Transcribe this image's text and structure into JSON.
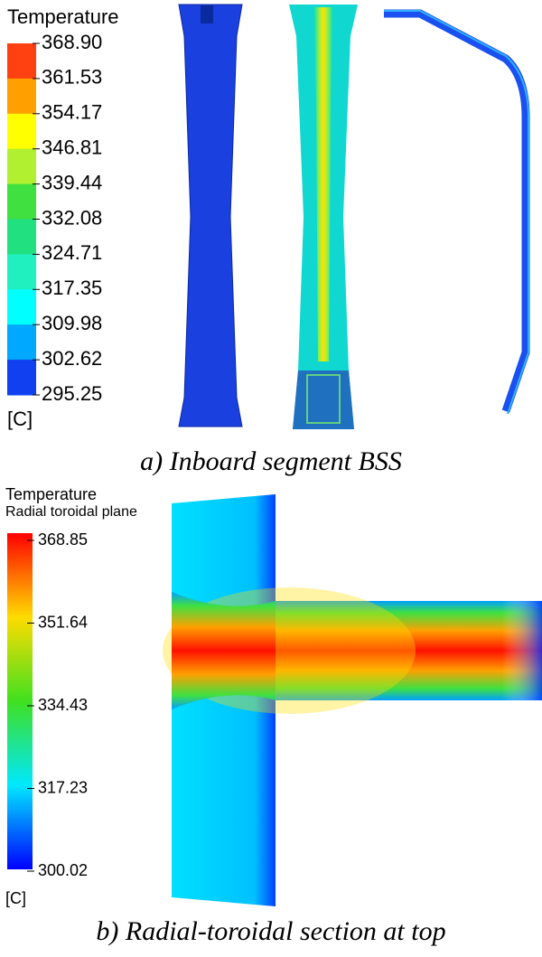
{
  "panel_a": {
    "legend_title": "Temperature",
    "ticks": [
      "368.90",
      "361.53",
      "354.17",
      "346.81",
      "339.44",
      "332.08",
      "324.71",
      "317.35",
      "309.98",
      "302.62",
      "295.25"
    ],
    "unit": "[C]",
    "caption": "a) Inboard segment BSS"
  },
  "panel_b": {
    "legend_title": "Temperature",
    "legend_subtitle": "Radial toroidal plane",
    "ticks": [
      "368.85",
      "351.64",
      "334.43",
      "317.23",
      "300.02"
    ],
    "unit": "[C]",
    "caption": "b) Radial-toroidal section at top"
  }
}
